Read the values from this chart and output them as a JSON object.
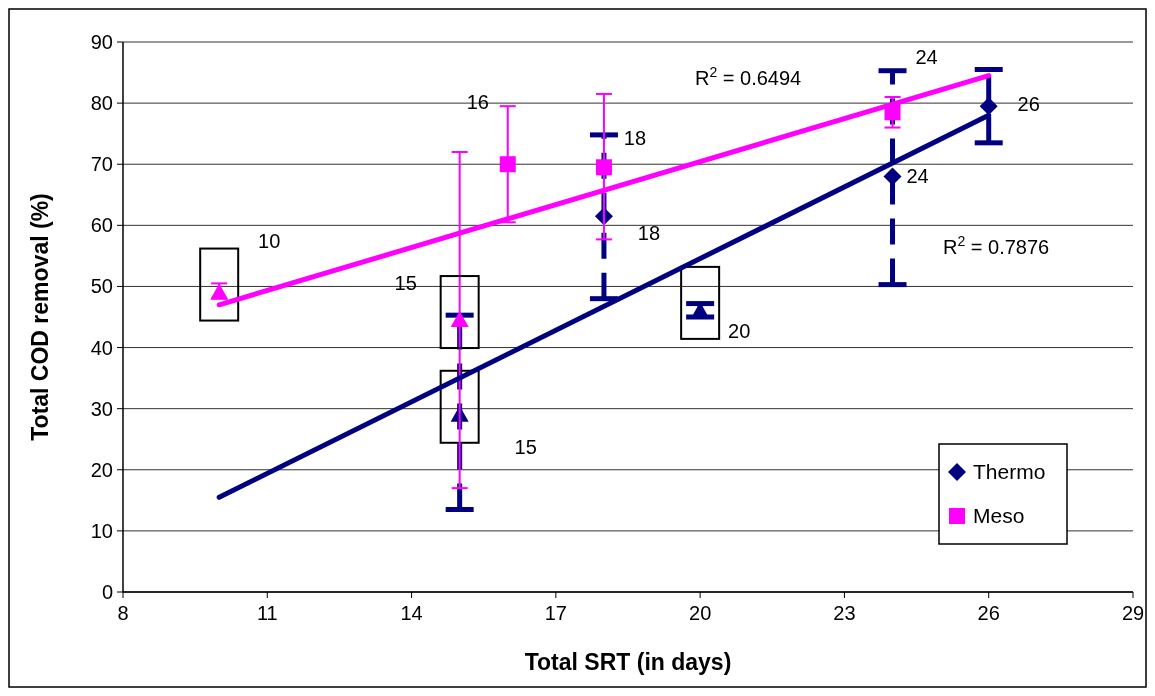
{
  "chart_data": {
    "type": "scatter",
    "xlabel": "Total SRT (in days)",
    "ylabel": "Total COD removal (%)",
    "xlim": [
      8,
      29
    ],
    "xticks": [
      8,
      11,
      14,
      17,
      20,
      23,
      26,
      29
    ],
    "ylim": [
      0,
      90
    ],
    "yticks": [
      0,
      10,
      20,
      30,
      40,
      50,
      60,
      70,
      80,
      90
    ],
    "grid": "y",
    "legend": "bottom right",
    "series": [
      {
        "name": "Thermo",
        "marker": "diamond",
        "line_style": "dashed",
        "color": "#000080",
        "x": [
          18,
          24,
          26
        ],
        "values": [
          61.5,
          68,
          79.5
        ],
        "errors": [
          [
            48,
            74.8
          ],
          [
            50.3,
            85.3
          ],
          [
            73.5,
            85.5
          ]
        ]
      },
      {
        "marker": "triangle",
        "line_style": "dashed",
        "color": "#000080",
        "x": [
          15,
          20
        ],
        "values": [
          29,
          46
        ],
        "errors": [
          [
            13.5,
            45.3
          ],
          [
            45,
            47.2
          ]
        ]
      },
      {
        "name": "Meso",
        "marker": "square",
        "color": "#ff00ff",
        "x": [
          16,
          18,
          24
        ],
        "values": [
          70,
          69.5,
          78.5
        ],
        "errors": [
          [
            60.5,
            79.5
          ],
          [
            57.7,
            81.5
          ],
          [
            76,
            81
          ]
        ]
      },
      {
        "marker": "triangle",
        "color": "#ff00ff",
        "x": [
          10,
          15
        ],
        "values": [
          49,
          44.5
        ],
        "errors": [
          [
            48,
            50.5
          ],
          [
            17,
            72
          ]
        ]
      },
      {
        "type": "line",
        "marker": "none",
        "color": "#000080",
        "x": [
          10,
          26
        ],
        "values": [
          15.5,
          78
        ]
      },
      {
        "type": "line",
        "marker": "none",
        "color": "#ff00ff",
        "x": [
          10,
          26
        ],
        "values": [
          47,
          84.5
        ]
      }
    ],
    "annotations": [
      {
        "text": "10",
        "x": 10,
        "y": 49
      },
      {
        "text": "15",
        "x": 15,
        "y": 44.5
      },
      {
        "text": "15",
        "x": 15,
        "y": 29
      },
      {
        "text": "16",
        "x": 16,
        "y": 70
      },
      {
        "text": "18",
        "x": 18,
        "y": 69.5
      },
      {
        "text": "18",
        "x": 18,
        "y": 61.5
      },
      {
        "text": "20",
        "x": 20,
        "y": 46
      },
      {
        "text": "24",
        "x": 24,
        "y": 78.5
      },
      {
        "text": "24",
        "x": 24,
        "y": 68
      },
      {
        "text": "26",
        "x": 26,
        "y": 79.5
      },
      "R$^{2}$ = 0.6494",
      "R$^{2}$ = 0.7876"
    ]
  }
}
